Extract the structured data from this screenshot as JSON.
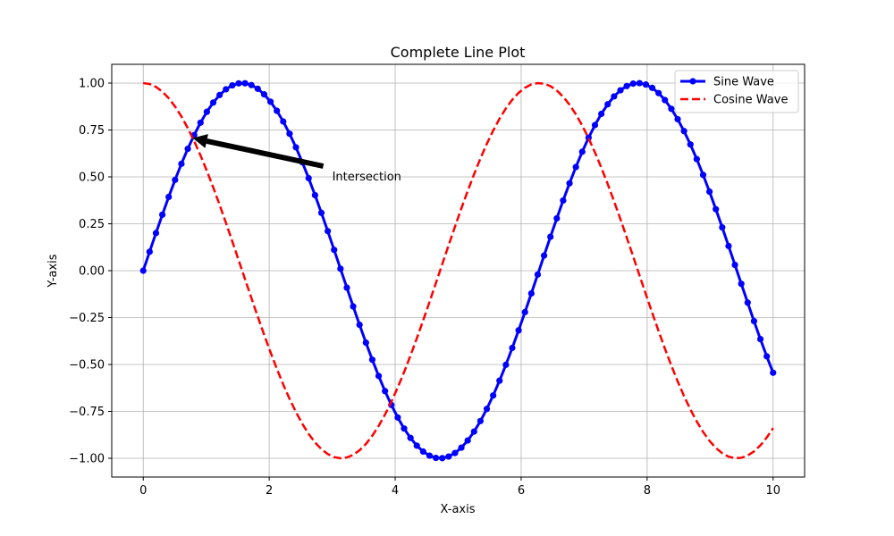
{
  "chart_data": {
    "type": "line",
    "title": "Complete Line Plot",
    "xlabel": "X-axis",
    "ylabel": "Y-axis",
    "xlim": [
      -0.5,
      10.5
    ],
    "ylim": [
      -1.1,
      1.1
    ],
    "x_ticks": [
      0,
      2,
      4,
      6,
      8,
      10
    ],
    "x_tick_labels": [
      "0",
      "2",
      "4",
      "6",
      "8",
      "10"
    ],
    "y_ticks": [
      -1.0,
      -0.75,
      -0.5,
      -0.25,
      0.0,
      0.25,
      0.5,
      0.75,
      1.0
    ],
    "y_tick_labels": [
      "−1.00",
      "−0.75",
      "−0.50",
      "−0.25",
      "0.00",
      "0.25",
      "0.50",
      "0.75",
      "1.00"
    ],
    "grid": true,
    "legend_position": "top-right",
    "x": {
      "start": 0,
      "end": 10,
      "num_points": 100
    },
    "series": [
      {
        "name": "Sine Wave",
        "function": "sin(x)",
        "color": "#0000ff",
        "linestyle": "solid",
        "marker": "circle"
      },
      {
        "name": "Cosine Wave",
        "function": "cos(x)",
        "color": "#ff0000",
        "linestyle": "dashed",
        "marker": "none"
      }
    ],
    "annotations": [
      {
        "text": "Intersection",
        "xy": [
          0.785,
          0.707
        ],
        "xytext": [
          3.0,
          0.5
        ],
        "arrow_color": "#000000"
      }
    ]
  }
}
